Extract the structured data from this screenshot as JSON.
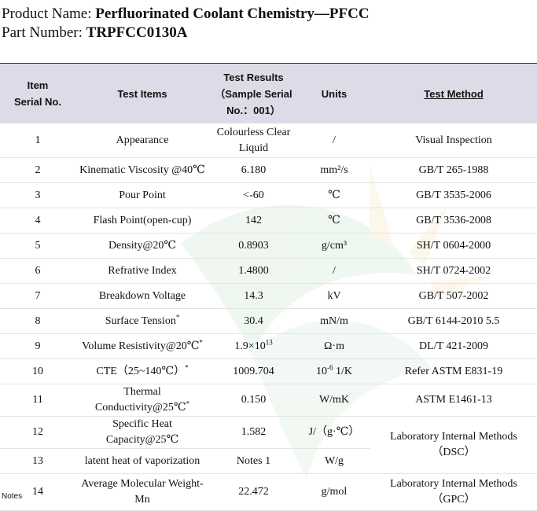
{
  "header": {
    "product_label": "Product Name: ",
    "product_name": "Perfluorinated Coolant Chemistry—PFCC",
    "part_label": "Part Number: ",
    "part_number": "TRPFCC0130A"
  },
  "table": {
    "columns": {
      "serial_line1": "Item",
      "serial_line2": "Serial No.",
      "items": "Test Items",
      "results_line1": "Test Results",
      "results_line2": "（Sample Serial",
      "results_line3": "No.：001）",
      "units": "Units",
      "method": "Test Method"
    },
    "rows": [
      {
        "no": "1",
        "item": "Appearance",
        "result": "Colourless Clear Liquid",
        "unit": "/",
        "method": "Visual Inspection"
      },
      {
        "no": "2",
        "item": "Kinematic Viscosity @40℃",
        "result": "6.180",
        "unit": "mm²/s",
        "method": "GB/T 265-1988"
      },
      {
        "no": "3",
        "item": "Pour Point",
        "result": "<-60",
        "unit": "℃",
        "method": "GB/T 3535-2006"
      },
      {
        "no": "4",
        "item": "Flash Point(open-cup)",
        "result": "142",
        "unit": "℃",
        "method": "GB/T 3536-2008"
      },
      {
        "no": "5",
        "item": "Density@20℃",
        "result": "0.8903",
        "unit": "g/cm³",
        "method": "SH/T 0604-2000"
      },
      {
        "no": "6",
        "item": "Refrative Index",
        "result": "1.4800",
        "unit": "/",
        "method": "SH/T 0724-2002"
      },
      {
        "no": "7",
        "item": "Breakdown Voltage",
        "result": "14.3",
        "unit": "kV",
        "method": "GB/T 507-2002"
      },
      {
        "no": "8",
        "item": "Surface Tension",
        "item_mark": "*",
        "result": "30.4",
        "unit": "mN/m",
        "method": "GB/T 6144-2010 5.5"
      },
      {
        "no": "9",
        "item": "Volume Resistivity@20℃",
        "item_mark": "*",
        "result": "1.9×10",
        "result_sup": "13",
        "unit": "Ω·m",
        "method": "DL/T 421-2009"
      },
      {
        "no": "10",
        "item": "CTE（25~140℃）",
        "item_mark": "*",
        "result": "1009.704",
        "unit_pre": "10",
        "unit_sup": "-6",
        "unit": " 1/K",
        "method": "Refer ASTM E831-19"
      },
      {
        "no": "11",
        "item": "Thermal Conductivity@25℃",
        "item_mark": "*",
        "result": "0.150",
        "unit": "W/mK",
        "method": "ASTM E1461-13"
      },
      {
        "no": "12",
        "item": "Specific Heat Capacity@25℃",
        "result": "1.582",
        "unit": "J/（g·℃）",
        "method": "Laboratory Internal Methods（DSC）",
        "method_span": 2
      },
      {
        "no": "13",
        "item": "latent heat of vaporization",
        "result": "Notes 1",
        "unit": "W/g"
      },
      {
        "no": "14",
        "item": "Average Molecular Weight-Mn",
        "result": "22.472",
        "unit": "g/mol",
        "method": "Laboratory Internal Methods（GPC）"
      }
    ]
  },
  "footer": {
    "notes_label": "Notes"
  },
  "colors": {
    "header_bg": "#dcdbe7",
    "watermark": "#e8f3ea"
  }
}
